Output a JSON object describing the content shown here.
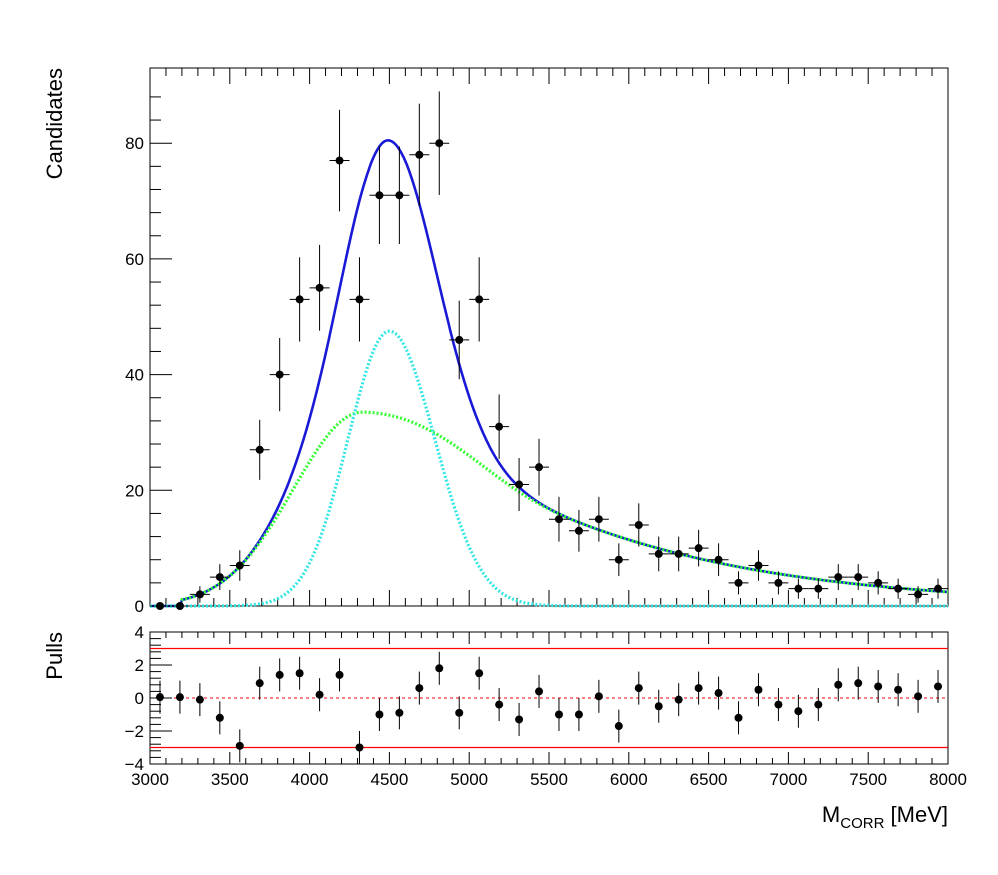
{
  "chart_data": [
    {
      "type": "scatter",
      "panel": "main",
      "ylabel": "Candidates",
      "xlim": [
        3000,
        8000
      ],
      "ylim": [
        0,
        93
      ],
      "yticks": [
        0,
        20,
        40,
        60,
        80
      ],
      "bin_half_width": 62.5,
      "data_points": {
        "x": [
          3062.5,
          3187.5,
          3312.5,
          3437.5,
          3562.5,
          3687.5,
          3812.5,
          3937.5,
          4062.5,
          4187.5,
          4312.5,
          4437.5,
          4562.5,
          4687.5,
          4812.5,
          4937.5,
          5062.5,
          5187.5,
          5312.5,
          5437.5,
          5562.5,
          5687.5,
          5812.5,
          5937.5,
          6062.5,
          6187.5,
          6312.5,
          6437.5,
          6562.5,
          6687.5,
          6812.5,
          6937.5,
          7062.5,
          7187.5,
          7312.5,
          7437.5,
          7562.5,
          7687.5,
          7812.5,
          7937.5
        ],
        "y": [
          0,
          0,
          2,
          5,
          7,
          27,
          40,
          53,
          55,
          77,
          53,
          71,
          71,
          78,
          80,
          46,
          53,
          31,
          21,
          24,
          15,
          13,
          15,
          8,
          14,
          9,
          9,
          10,
          8,
          4,
          7,
          4,
          3,
          3,
          5,
          5,
          4,
          3,
          2,
          3
        ]
      },
      "curves": [
        {
          "kind": "total",
          "color": "#1a1ad6",
          "style": "solid"
        },
        {
          "kind": "component-1",
          "color": "#33ff33",
          "style": "dotted"
        },
        {
          "kind": "component-2",
          "color": "#33e6e6",
          "style": "dotted"
        }
      ]
    },
    {
      "type": "scatter",
      "panel": "pulls",
      "ylabel": "Pulls",
      "xlabel_main": "M",
      "xlabel_sub": "CORR",
      "xlabel_unit": " [MeV]",
      "xlim": [
        3000,
        8000
      ],
      "ylim": [
        -4,
        4
      ],
      "yticks": [
        -4,
        -2,
        0,
        2,
        4
      ],
      "xticks": [
        3000,
        3500,
        4000,
        4500,
        5000,
        5500,
        6000,
        6500,
        7000,
        7500,
        8000
      ],
      "reference_lines": [
        3,
        -3
      ],
      "reference_color": "#ff0000",
      "data_points": {
        "x": [
          3062.5,
          3187.5,
          3312.5,
          3437.5,
          3562.5,
          3687.5,
          3812.5,
          3937.5,
          4062.5,
          4187.5,
          4312.5,
          4437.5,
          4562.5,
          4687.5,
          4812.5,
          4937.5,
          5062.5,
          5187.5,
          5312.5,
          5437.5,
          5562.5,
          5687.5,
          5812.5,
          5937.5,
          6062.5,
          6187.5,
          6312.5,
          6437.5,
          6562.5,
          6687.5,
          6812.5,
          6937.5,
          7062.5,
          7187.5,
          7312.5,
          7437.5,
          7562.5,
          7687.5,
          7812.5,
          7937.5
        ],
        "y": [
          0.05,
          0.05,
          -0.1,
          -1.2,
          -2.9,
          0.9,
          1.4,
          1.5,
          0.2,
          1.4,
          -3.0,
          -1.0,
          -0.9,
          0.6,
          1.8,
          -0.9,
          1.5,
          -0.4,
          -1.3,
          0.4,
          -1.0,
          -1.0,
          0.1,
          -1.7,
          0.6,
          -0.5,
          -0.1,
          0.6,
          0.3,
          -1.2,
          0.5,
          -0.4,
          -0.8,
          -0.4,
          0.8,
          0.9,
          0.7,
          0.5,
          0.1,
          0.7
        ]
      }
    }
  ]
}
